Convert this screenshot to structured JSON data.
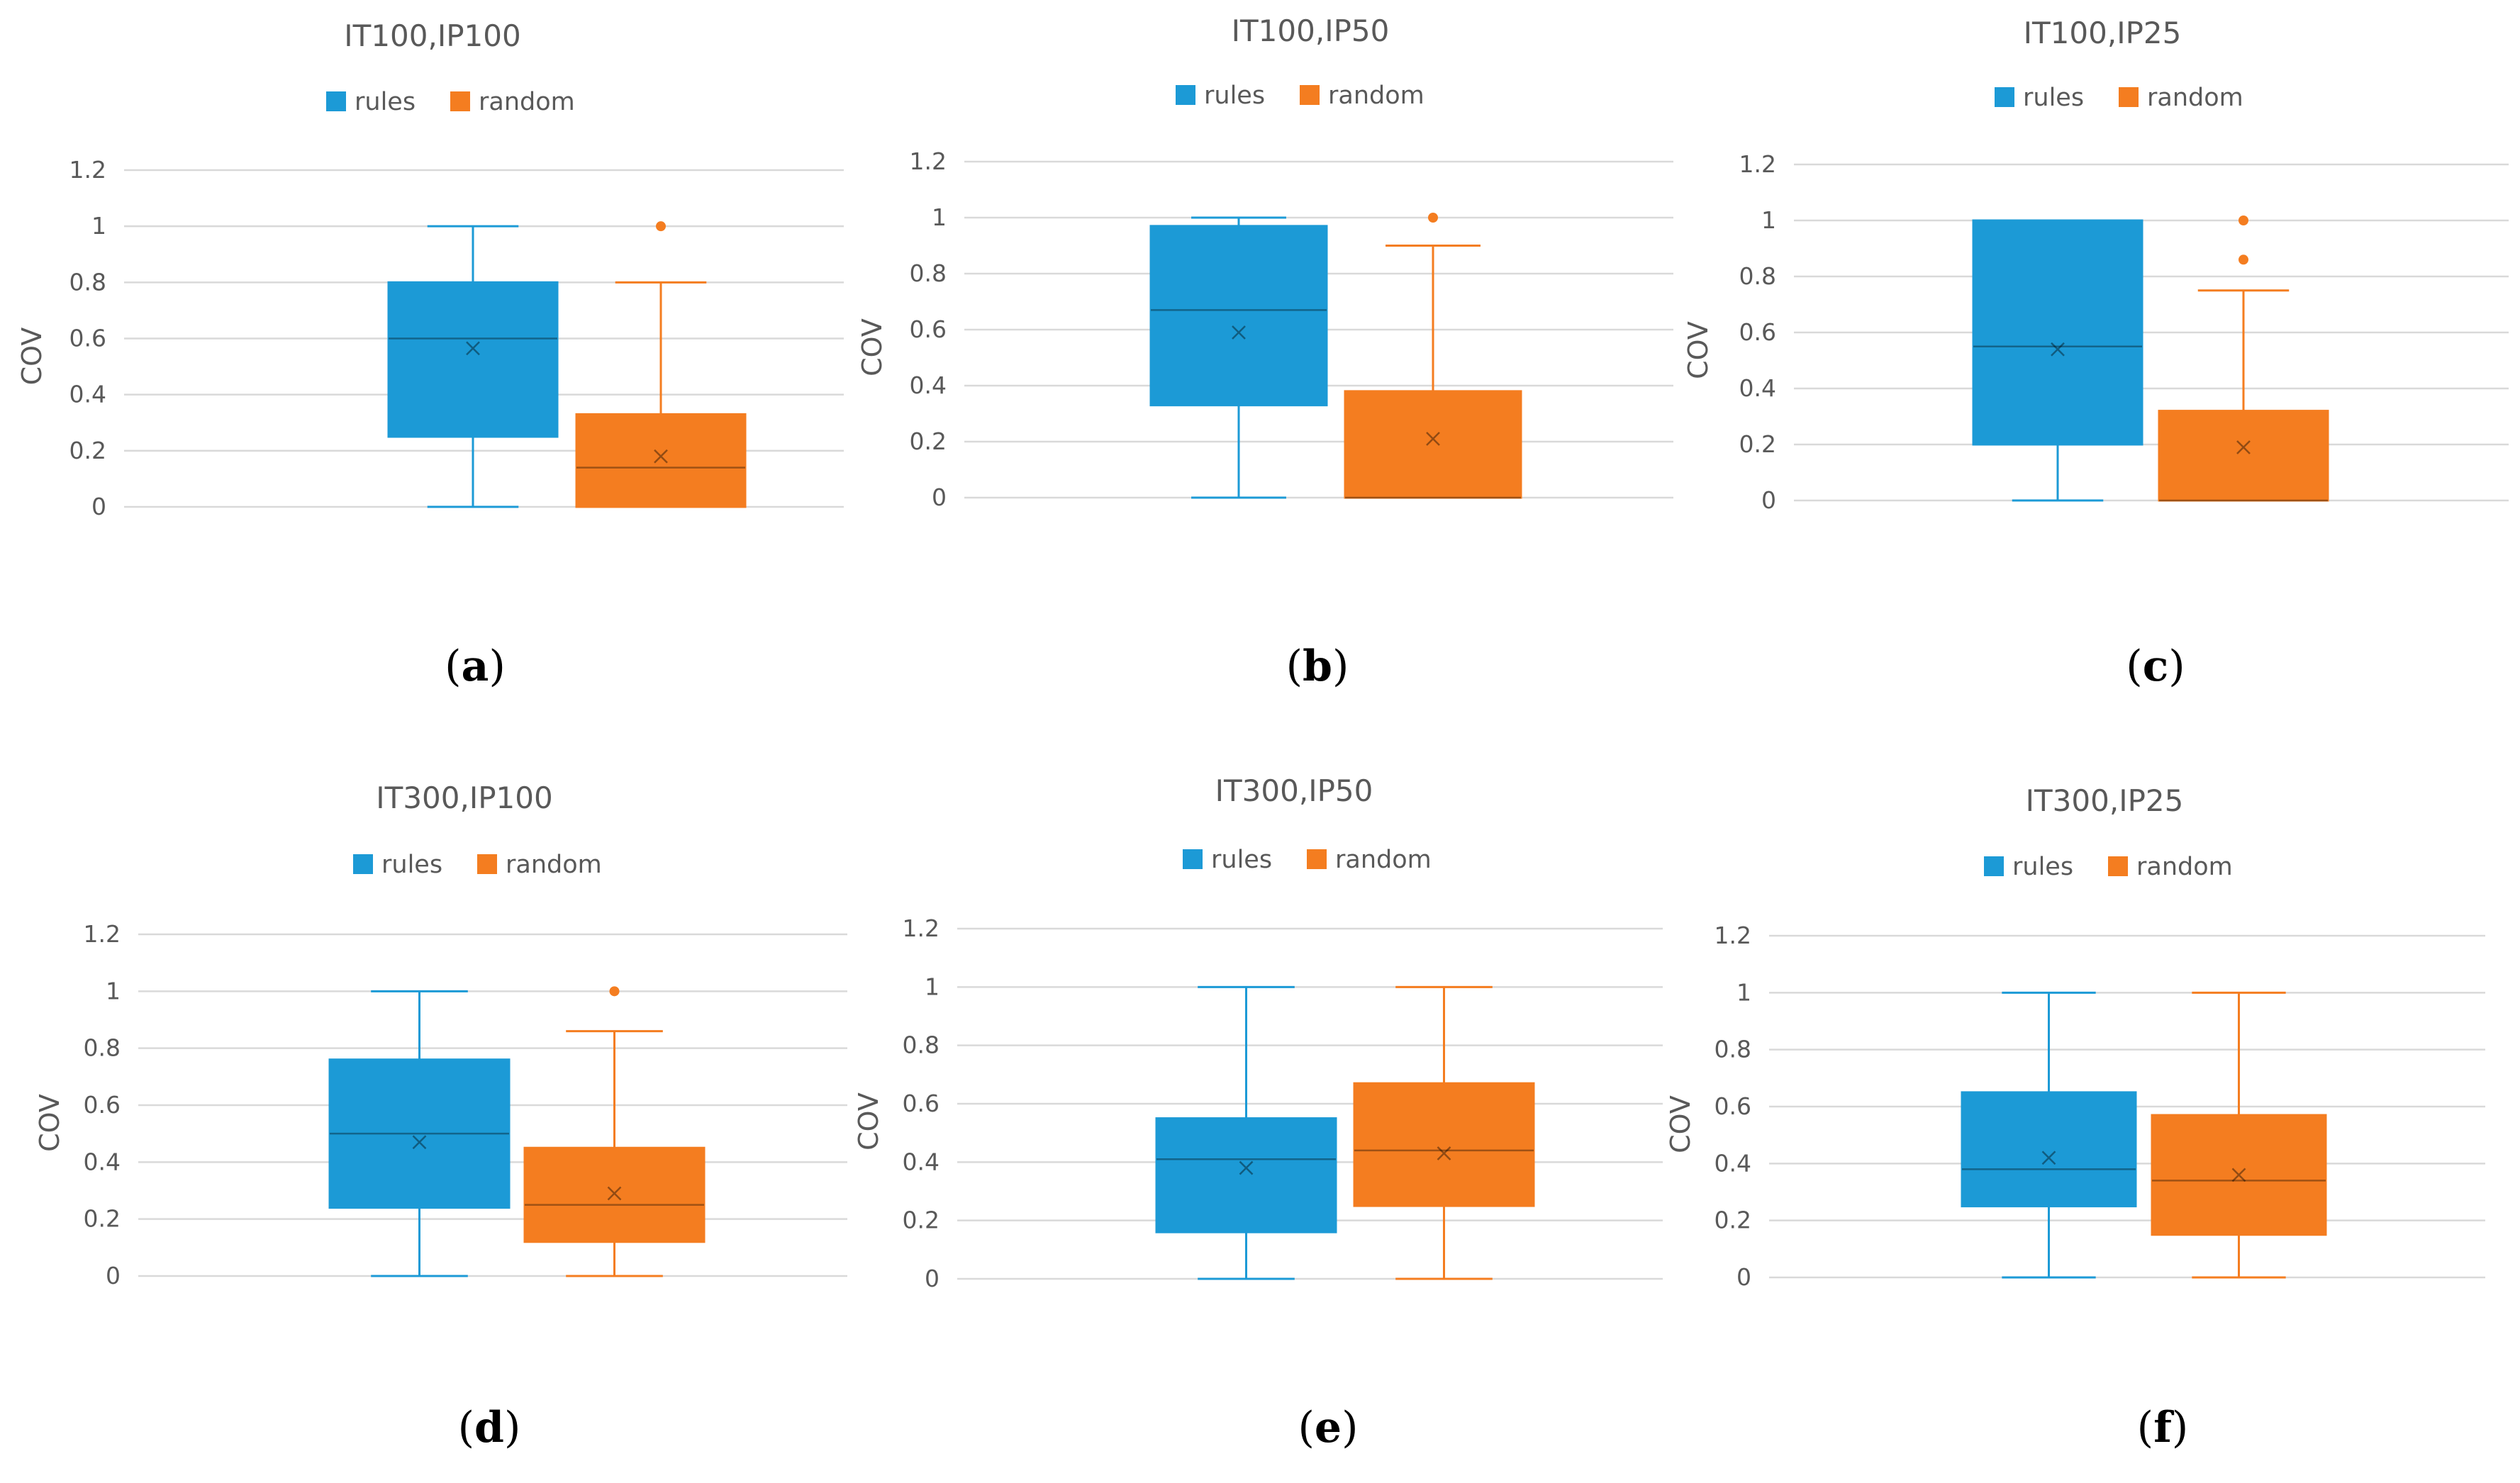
{
  "colors": {
    "rules": "#1c9ad6",
    "random": "#f47d20",
    "grid": "#d9d9d9",
    "text": "#595959"
  },
  "chart_data": [
    {
      "type": "box",
      "caption": "a",
      "title": "IT100,IP100",
      "legend": [
        "rules",
        "random"
      ],
      "ylabel": "COV",
      "yticks": [
        "0",
        "0.2",
        "0.4",
        "0.6",
        "0.8",
        "1",
        "1.2"
      ],
      "ylim": [
        0,
        1.2
      ],
      "series": [
        {
          "name": "rules",
          "min": 0,
          "q1": 0.25,
          "median": 0.6,
          "mean": 0.565,
          "q3": 0.8,
          "max": 1,
          "outliers": []
        },
        {
          "name": "random",
          "min": 0,
          "q1": 0,
          "median": 0.14,
          "mean": 0.18,
          "q3": 0.33,
          "max": 0.8,
          "outliers": [
            1
          ]
        }
      ]
    },
    {
      "type": "box",
      "caption": "b",
      "title": "IT100,IP50",
      "legend": [
        "rules",
        "random"
      ],
      "ylabel": "COV",
      "yticks": [
        "0",
        "0.2",
        "0.4",
        "0.6",
        "0.8",
        "1",
        "1.2"
      ],
      "ylim": [
        0,
        1.2
      ],
      "series": [
        {
          "name": "rules",
          "min": 0,
          "q1": 0.33,
          "median": 0.67,
          "mean": 0.59,
          "q3": 0.97,
          "max": 1,
          "outliers": []
        },
        {
          "name": "random",
          "min": 0,
          "q1": 0,
          "median": 0,
          "mean": 0.21,
          "q3": 0.38,
          "max": 0.9,
          "outliers": [
            1
          ]
        }
      ]
    },
    {
      "type": "box",
      "caption": "c",
      "title": "IT100,IP25",
      "legend": [
        "rules",
        "random"
      ],
      "ylabel": "COV",
      "yticks": [
        "0",
        "0.2",
        "0.4",
        "0.6",
        "0.8",
        "1",
        "1.2"
      ],
      "ylim": [
        0,
        1.2
      ],
      "series": [
        {
          "name": "rules",
          "min": 0,
          "q1": 0.2,
          "median": 0.55,
          "mean": 0.54,
          "q3": 1,
          "max": 1,
          "outliers": []
        },
        {
          "name": "random",
          "min": 0,
          "q1": 0,
          "median": 0,
          "mean": 0.19,
          "q3": 0.32,
          "max": 0.75,
          "outliers": [
            0.86,
            1
          ]
        }
      ]
    },
    {
      "type": "box",
      "caption": "d",
      "title": "IT300,IP100",
      "legend": [
        "rules",
        "random"
      ],
      "ylabel": "COV",
      "yticks": [
        "0",
        "0.2",
        "0.4",
        "0.6",
        "0.8",
        "1",
        "1.2"
      ],
      "ylim": [
        0,
        1.2
      ],
      "series": [
        {
          "name": "rules",
          "min": 0,
          "q1": 0.24,
          "median": 0.5,
          "mean": 0.47,
          "q3": 0.76,
          "max": 1,
          "outliers": []
        },
        {
          "name": "random",
          "min": 0,
          "q1": 0.12,
          "median": 0.25,
          "mean": 0.29,
          "q3": 0.45,
          "max": 0.86,
          "outliers": [
            1
          ]
        }
      ]
    },
    {
      "type": "box",
      "caption": "e",
      "title": "IT300,IP50",
      "legend": [
        "rules",
        "random"
      ],
      "ylabel": "COV",
      "yticks": [
        "0",
        "0.2",
        "0.4",
        "0.6",
        "0.8",
        "1",
        "1.2"
      ],
      "ylim": [
        0,
        1.2
      ],
      "series": [
        {
          "name": "rules",
          "min": 0,
          "q1": 0.16,
          "median": 0.41,
          "mean": 0.38,
          "q3": 0.55,
          "max": 1,
          "outliers": []
        },
        {
          "name": "random",
          "min": 0,
          "q1": 0.25,
          "median": 0.44,
          "mean": 0.43,
          "q3": 0.67,
          "max": 1,
          "outliers": []
        }
      ]
    },
    {
      "type": "box",
      "caption": "f",
      "title": "IT300,IP25",
      "legend": [
        "rules",
        "random"
      ],
      "ylabel": "COV",
      "yticks": [
        "0",
        "0.2",
        "0.4",
        "0.6",
        "0.8",
        "1",
        "1.2"
      ],
      "ylim": [
        0,
        1.2
      ],
      "series": [
        {
          "name": "rules",
          "min": 0,
          "q1": 0.25,
          "median": 0.38,
          "mean": 0.42,
          "q3": 0.65,
          "max": 1,
          "outliers": []
        },
        {
          "name": "random",
          "min": 0,
          "q1": 0.15,
          "median": 0.34,
          "mean": 0.36,
          "q3": 0.57,
          "max": 1,
          "outliers": []
        }
      ]
    }
  ]
}
